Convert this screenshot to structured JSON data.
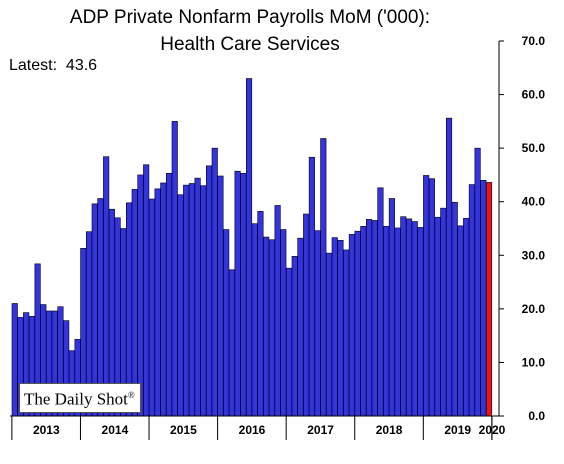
{
  "title_line1": "ADP Private Nonfarm Payrolls MoM ('000):",
  "title_line2": "Health Care Services",
  "latest_label": "Latest:",
  "latest_value": "43.6",
  "logo_text": "The Daily Shot",
  "logo_mark": "®",
  "colors": {
    "bar": "#3333e0",
    "highlight": "#e8151a",
    "bar_outline": "#000000"
  },
  "chart_data": {
    "type": "bar",
    "title": "ADP Private Nonfarm Payrolls MoM ('000): Health Care Services",
    "ylim": [
      0,
      70
    ],
    "yticks": [
      0,
      10,
      20,
      30,
      40,
      50,
      60,
      70
    ],
    "ytick_labels": [
      "0.0",
      "10.0",
      "20.0",
      "30.0",
      "40.0",
      "50.0",
      "60.0",
      "70.0"
    ],
    "year_labels": [
      "2013",
      "2014",
      "2015",
      "2016",
      "2017",
      "2018",
      "2019",
      "2020"
    ],
    "grid": false,
    "values": [
      21.0,
      18.4,
      19.3,
      18.6,
      28.4,
      20.8,
      19.6,
      19.6,
      20.4,
      17.8,
      12.2,
      14.3,
      31.3,
      34.4,
      39.6,
      40.6,
      48.4,
      38.6,
      37.0,
      35.0,
      39.8,
      42.3,
      45.0,
      46.9,
      40.5,
      42.4,
      43.5,
      45.3,
      55.0,
      41.3,
      43.1,
      43.4,
      44.4,
      43.0,
      46.7,
      50.0,
      44.8,
      34.8,
      27.3,
      45.7,
      45.3,
      63.0,
      35.9,
      38.2,
      33.4,
      32.9,
      39.3,
      34.8,
      27.6,
      29.8,
      33.2,
      37.7,
      48.3,
      34.6,
      51.8,
      30.4,
      33.3,
      32.8,
      31.0,
      33.9,
      34.5,
      35.4,
      36.7,
      36.5,
      42.6,
      35.4,
      40.6,
      35.1,
      37.2,
      36.8,
      36.3,
      35.2,
      44.9,
      44.3,
      37.1,
      38.8,
      55.6,
      39.9,
      35.5,
      36.9,
      43.2,
      50.0,
      44.0,
      43.6
    ]
  }
}
